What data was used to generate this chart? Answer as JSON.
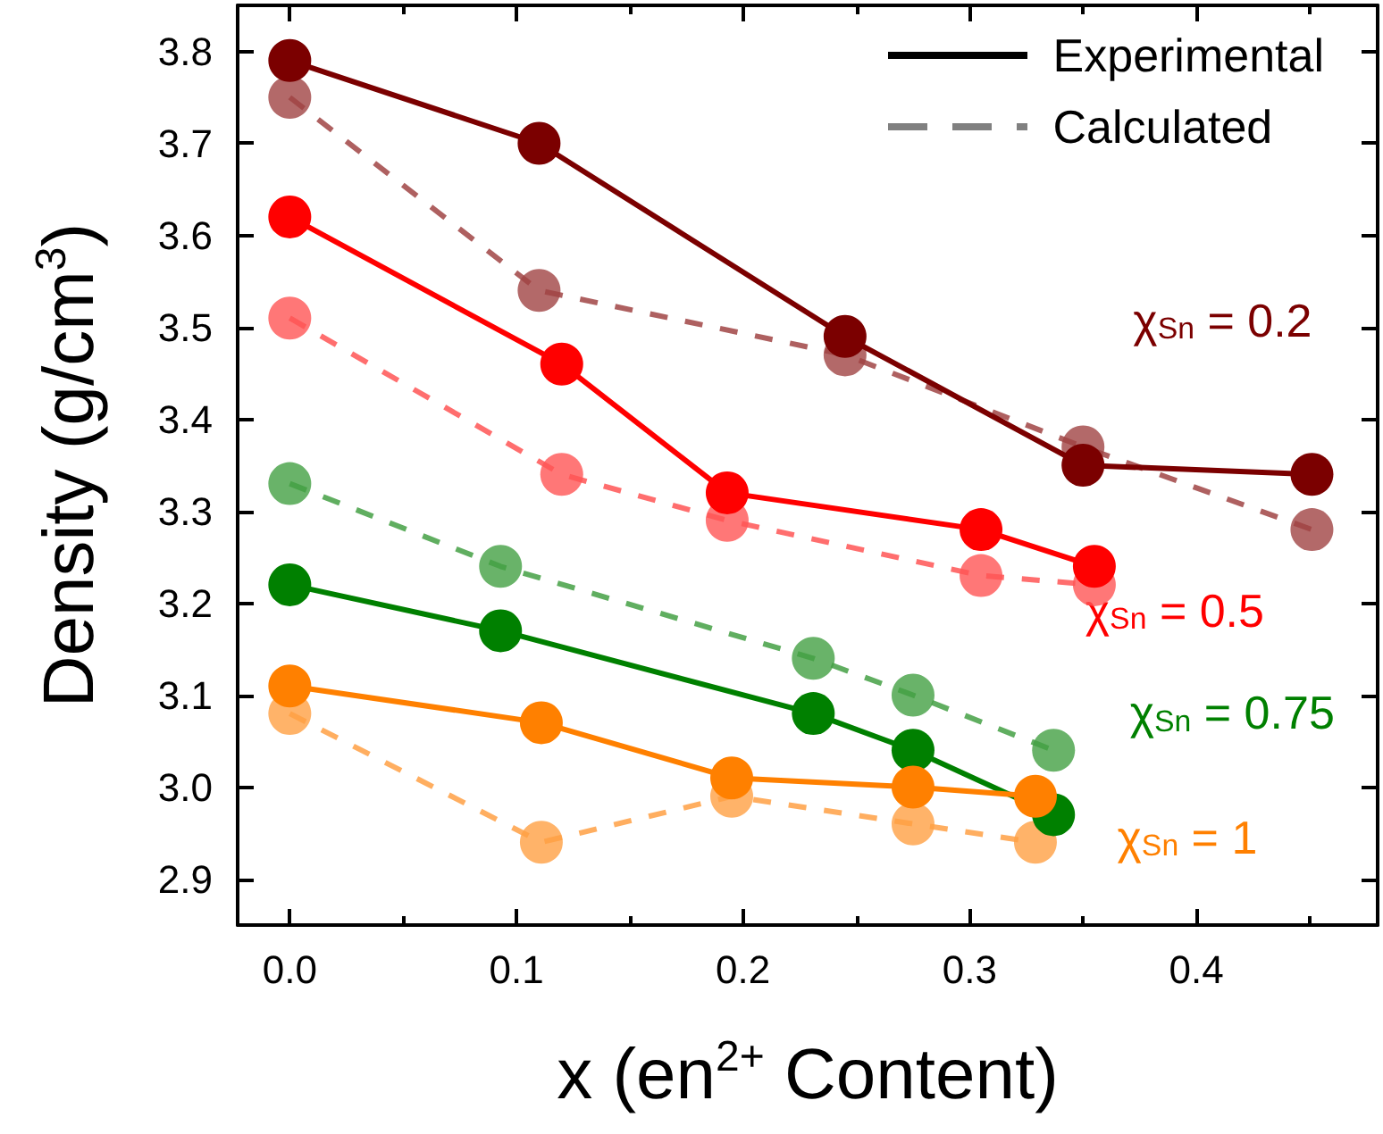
{
  "chart_data": {
    "type": "line",
    "xlabel": "x (en$^{2+}$ Content)",
    "ylabel": "Density (g/cm$^{3}$)",
    "annotations": [
      "Experimental",
      "Calculated"
    ],
    "marker": "circle",
    "grid": false,
    "xlim": [
      -0.023,
      0.48
    ],
    "xticks": [
      {
        "value": 0,
        "label": "0.0"
      },
      {
        "value": 0.1,
        "label": "0.1"
      },
      {
        "value": 0.2,
        "label": "0.2"
      },
      {
        "value": 0.3,
        "label": "0.3"
      },
      {
        "value": 0.4,
        "label": "0.4"
      }
    ],
    "ylim": [
      2.85,
      3.85
    ],
    "yticks": [
      {
        "value": 2.9,
        "label": "2.9"
      },
      {
        "value": 3.0,
        "label": "3.0"
      },
      {
        "value": 3.1,
        "label": "3.1"
      },
      {
        "value": 3.2,
        "label": "3.2"
      },
      {
        "value": 3.3,
        "label": "3.3"
      },
      {
        "value": 3.4,
        "label": "3.4"
      },
      {
        "value": 3.5,
        "label": "3.5"
      },
      {
        "value": 3.6,
        "label": "3.6"
      },
      {
        "value": 3.7,
        "label": "3.7"
      },
      {
        "value": 3.8,
        "label": "3.8"
      }
    ],
    "series": [
      {
        "name": "χ$_{Sn}$ = 0.2",
        "color": "#7b0000",
        "line_style": "solid",
        "x": [
          0,
          0.11,
          0.245,
          0.35,
          0.451
        ],
        "values": [
          3.79,
          3.7,
          3.49,
          3.35,
          3.34
        ]
      },
      {
        "color": "#a04444",
        "line_style": "dashed",
        "x": [
          0,
          0.11,
          0.245,
          0.35,
          0.451
        ],
        "values": [
          3.75,
          3.54,
          3.47,
          3.37,
          3.28
        ]
      },
      {
        "name": "χ$_{Sn}$ = 0.5",
        "color": "#ff0000",
        "line_style": "solid",
        "x": [
          0,
          0.12,
          0.193,
          0.305,
          0.355
        ],
        "values": [
          3.62,
          3.46,
          3.32,
          3.28,
          3.24
        ]
      },
      {
        "color": "#ff5555",
        "line_style": "dashed",
        "x": [
          0,
          0.12,
          0.193,
          0.305,
          0.355
        ],
        "values": [
          3.51,
          3.34,
          3.29,
          3.23,
          3.22
        ]
      },
      {
        "name": "χ$_{Sn}$ = 0.75",
        "color": "#008000",
        "line_style": "solid",
        "x": [
          0,
          0.093,
          0.231,
          0.275,
          0.337
        ],
        "values": [
          3.22,
          3.17,
          3.08,
          3.04,
          2.97
        ]
      },
      {
        "color": "#44a044",
        "line_style": "dashed",
        "x": [
          0,
          0.093,
          0.231,
          0.275,
          0.337
        ],
        "values": [
          3.33,
          3.24,
          3.14,
          3.1,
          3.04
        ]
      },
      {
        "name": "χ$_{Sn}$ = 1",
        "color": "#ff8000",
        "line_style": "solid",
        "x": [
          0,
          0.111,
          0.195,
          0.275,
          0.329
        ],
        "values": [
          3.11,
          3.07,
          3.01,
          3.0,
          2.99
        ]
      },
      {
        "color": "#ffa044",
        "line_style": "dashed",
        "x": [
          0,
          0.111,
          0.195,
          0.275,
          0.329
        ],
        "values": [
          3.08,
          2.94,
          2.99,
          2.96,
          2.94
        ]
      }
    ]
  }
}
